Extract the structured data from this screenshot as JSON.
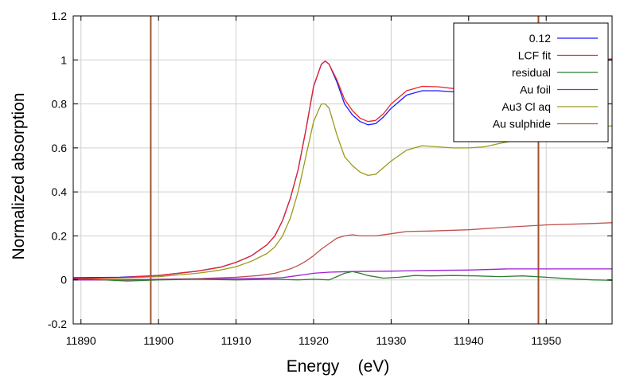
{
  "chart_data": {
    "type": "line",
    "xlabel": "Energy    (eV)",
    "ylabel": "Normalized absorption",
    "xlim": [
      11889,
      11958.5
    ],
    "ylim": [
      -0.2,
      1.2
    ],
    "x_ticks": [
      11890,
      11900,
      11910,
      11920,
      11930,
      11940,
      11950
    ],
    "y_ticks": [
      -0.2,
      0,
      0.2,
      0.4,
      0.6,
      0.8,
      1,
      1.2
    ],
    "y_tick_labels": [
      "-0.2",
      "0",
      "0.2",
      "0.4",
      "0.6",
      "0.8",
      "1",
      "1.2"
    ],
    "grid": true,
    "legend_position": "top-right",
    "vertical_markers": [
      {
        "x": 11899,
        "color": "#a0522d"
      },
      {
        "x": 11949,
        "color": "#a0522d"
      }
    ],
    "series": [
      {
        "name": "0.12",
        "color": "#1a1aff",
        "points": [
          [
            11889,
            0.01
          ],
          [
            11895,
            0.012
          ],
          [
            11900,
            0.02
          ],
          [
            11905,
            0.04
          ],
          [
            11908,
            0.058
          ],
          [
            11910,
            0.08
          ],
          [
            11912,
            0.11
          ],
          [
            11914,
            0.16
          ],
          [
            11915,
            0.2
          ],
          [
            11916,
            0.27
          ],
          [
            11917,
            0.37
          ],
          [
            11918,
            0.5
          ],
          [
            11919,
            0.68
          ],
          [
            11920,
            0.88
          ],
          [
            11921,
            0.98
          ],
          [
            11921.5,
            0.995
          ],
          [
            11922,
            0.98
          ],
          [
            11923,
            0.9
          ],
          [
            11924,
            0.8
          ],
          [
            11925,
            0.75
          ],
          [
            11926,
            0.72
          ],
          [
            11927,
            0.705
          ],
          [
            11928,
            0.71
          ],
          [
            11929,
            0.74
          ],
          [
            11930,
            0.78
          ],
          [
            11932,
            0.84
          ],
          [
            11934,
            0.86
          ],
          [
            11936,
            0.86
          ],
          [
            11938,
            0.855
          ],
          [
            11940,
            0.86
          ],
          [
            11942,
            0.875
          ],
          [
            11944,
            0.89
          ],
          [
            11946,
            0.915
          ],
          [
            11948,
            0.935
          ],
          [
            11950,
            0.95
          ],
          [
            11952,
            0.965
          ],
          [
            11954,
            0.98
          ],
          [
            11956,
            0.995
          ],
          [
            11958.5,
            1.0
          ]
        ]
      },
      {
        "name": "LCF fit",
        "color": "#e8262b",
        "points": [
          [
            11889,
            0.005
          ],
          [
            11895,
            0.01
          ],
          [
            11900,
            0.02
          ],
          [
            11905,
            0.04
          ],
          [
            11908,
            0.058
          ],
          [
            11910,
            0.08
          ],
          [
            11912,
            0.11
          ],
          [
            11914,
            0.16
          ],
          [
            11915,
            0.2
          ],
          [
            11916,
            0.27
          ],
          [
            11917,
            0.37
          ],
          [
            11918,
            0.5
          ],
          [
            11919,
            0.68
          ],
          [
            11920,
            0.88
          ],
          [
            11921,
            0.98
          ],
          [
            11921.5,
            0.995
          ],
          [
            11922,
            0.98
          ],
          [
            11923,
            0.91
          ],
          [
            11924,
            0.82
          ],
          [
            11925,
            0.77
          ],
          [
            11926,
            0.735
          ],
          [
            11927,
            0.72
          ],
          [
            11928,
            0.725
          ],
          [
            11929,
            0.755
          ],
          [
            11930,
            0.8
          ],
          [
            11932,
            0.86
          ],
          [
            11934,
            0.88
          ],
          [
            11936,
            0.878
          ],
          [
            11938,
            0.87
          ],
          [
            11940,
            0.875
          ],
          [
            11942,
            0.89
          ],
          [
            11944,
            0.905
          ],
          [
            11946,
            0.925
          ],
          [
            11948,
            0.94
          ],
          [
            11950,
            0.955
          ],
          [
            11952,
            0.97
          ],
          [
            11954,
            0.985
          ],
          [
            11956,
            0.995
          ],
          [
            11958.5,
            1.005
          ]
        ]
      },
      {
        "name": "residual",
        "color": "#2e7d32",
        "points": [
          [
            11889,
            0.005
          ],
          [
            11893,
            0.0
          ],
          [
            11896,
            -0.005
          ],
          [
            11900,
            0.0
          ],
          [
            11905,
            0.003
          ],
          [
            11910,
            0.0
          ],
          [
            11915,
            0.003
          ],
          [
            11918,
            0.0
          ],
          [
            11920,
            0.003
          ],
          [
            11922,
            0.0
          ],
          [
            11923,
            0.015
          ],
          [
            11924,
            0.03
          ],
          [
            11925,
            0.038
          ],
          [
            11926,
            0.03
          ],
          [
            11927,
            0.02
          ],
          [
            11929,
            0.008
          ],
          [
            11931,
            0.012
          ],
          [
            11933,
            0.02
          ],
          [
            11935,
            0.018
          ],
          [
            11938,
            0.02
          ],
          [
            11941,
            0.018
          ],
          [
            11944,
            0.015
          ],
          [
            11947,
            0.018
          ],
          [
            11950,
            0.012
          ],
          [
            11953,
            0.005
          ],
          [
            11956,
            0.0
          ],
          [
            11958.5,
            -0.002
          ]
        ]
      },
      {
        "name": "Au foil",
        "color": "#9b1fd1",
        "points": [
          [
            11889,
            0.0
          ],
          [
            11895,
            0.0
          ],
          [
            11900,
            0.002
          ],
          [
            11905,
            0.004
          ],
          [
            11910,
            0.006
          ],
          [
            11914,
            0.008
          ],
          [
            11916,
            0.01
          ],
          [
            11918,
            0.02
          ],
          [
            11920,
            0.03
          ],
          [
            11922,
            0.035
          ],
          [
            11925,
            0.038
          ],
          [
            11930,
            0.04
          ],
          [
            11935,
            0.043
          ],
          [
            11940,
            0.045
          ],
          [
            11945,
            0.05
          ],
          [
            11950,
            0.05
          ],
          [
            11955,
            0.05
          ],
          [
            11958.5,
            0.05
          ]
        ]
      },
      {
        "name": "Au3 Cl aq",
        "color": "#9a9a1a",
        "points": [
          [
            11889,
            0.005
          ],
          [
            11895,
            0.008
          ],
          [
            11900,
            0.015
          ],
          [
            11905,
            0.03
          ],
          [
            11908,
            0.045
          ],
          [
            11910,
            0.06
          ],
          [
            11912,
            0.085
          ],
          [
            11914,
            0.12
          ],
          [
            11915,
            0.15
          ],
          [
            11916,
            0.2
          ],
          [
            11917,
            0.28
          ],
          [
            11918,
            0.4
          ],
          [
            11919,
            0.56
          ],
          [
            11920,
            0.72
          ],
          [
            11921,
            0.8
          ],
          [
            11921.5,
            0.8
          ],
          [
            11922,
            0.78
          ],
          [
            11923,
            0.66
          ],
          [
            11924,
            0.56
          ],
          [
            11925,
            0.52
          ],
          [
            11926,
            0.49
          ],
          [
            11927,
            0.475
          ],
          [
            11928,
            0.48
          ],
          [
            11929,
            0.51
          ],
          [
            11930,
            0.54
          ],
          [
            11932,
            0.59
          ],
          [
            11934,
            0.61
          ],
          [
            11936,
            0.605
          ],
          [
            11938,
            0.6
          ],
          [
            11940,
            0.6
          ],
          [
            11942,
            0.605
          ],
          [
            11944,
            0.62
          ],
          [
            11946,
            0.635
          ],
          [
            11948,
            0.65
          ],
          [
            11950,
            0.665
          ],
          [
            11952,
            0.675
          ],
          [
            11954,
            0.685
          ],
          [
            11956,
            0.695
          ],
          [
            11958.5,
            0.7
          ]
        ]
      },
      {
        "name": "Au sulphide",
        "color": "#c0504d",
        "points": [
          [
            11889,
            0.0
          ],
          [
            11895,
            0.0
          ],
          [
            11900,
            0.003
          ],
          [
            11905,
            0.006
          ],
          [
            11910,
            0.012
          ],
          [
            11913,
            0.02
          ],
          [
            11915,
            0.03
          ],
          [
            11917,
            0.05
          ],
          [
            11918,
            0.065
          ],
          [
            11919,
            0.085
          ],
          [
            11920,
            0.11
          ],
          [
            11921,
            0.14
          ],
          [
            11922,
            0.165
          ],
          [
            11923,
            0.19
          ],
          [
            11924,
            0.2
          ],
          [
            11925,
            0.205
          ],
          [
            11926,
            0.2
          ],
          [
            11927,
            0.2
          ],
          [
            11928,
            0.2
          ],
          [
            11930,
            0.21
          ],
          [
            11932,
            0.22
          ],
          [
            11935,
            0.222
          ],
          [
            11940,
            0.228
          ],
          [
            11945,
            0.24
          ],
          [
            11950,
            0.25
          ],
          [
            11955,
            0.255
          ],
          [
            11958.5,
            0.26
          ]
        ]
      }
    ]
  }
}
